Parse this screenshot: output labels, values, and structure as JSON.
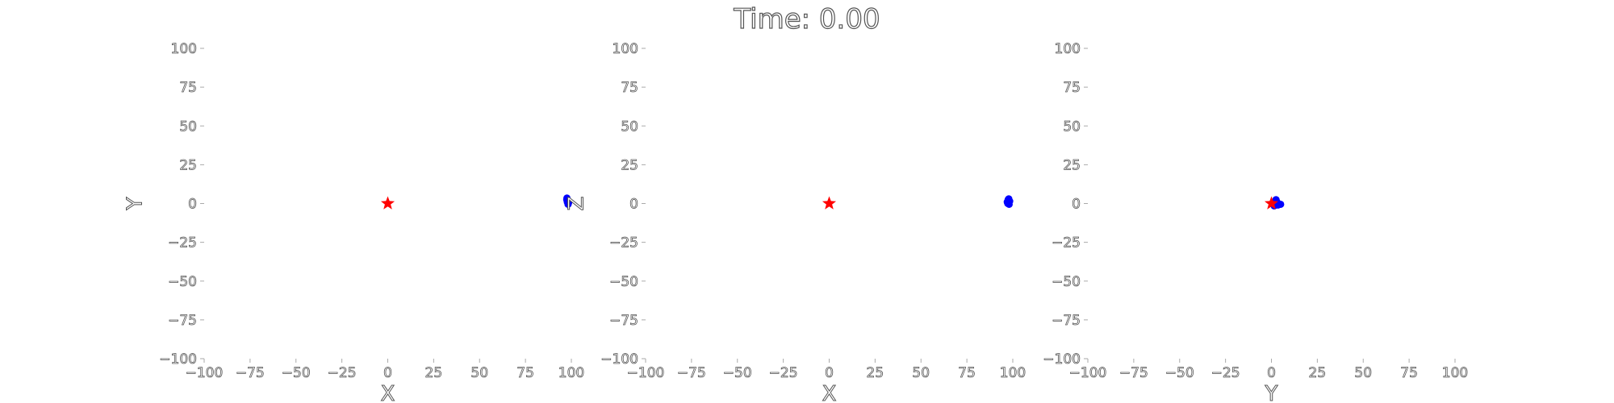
{
  "title": "Time: 0.00",
  "colors": {
    "star": "#ff0000",
    "bodies": "#0000ff",
    "text_outline": "#555555"
  },
  "chart_data": [
    {
      "type": "scatter",
      "xlabel": "X",
      "ylabel": "Y",
      "xlim": [
        -100,
        100
      ],
      "ylim": [
        -100,
        100
      ],
      "xticks": [
        -100,
        -75,
        -50,
        -25,
        0,
        25,
        50,
        75,
        100
      ],
      "yticks": [
        -100,
        -75,
        -50,
        -25,
        0,
        25,
        50,
        75,
        100
      ],
      "grid": false,
      "series": [
        {
          "marker": "star",
          "color": "#ff0000",
          "points": [
            [
              0,
              0
            ]
          ]
        },
        {
          "marker": "circle",
          "color": "#0000ff",
          "points": [
            [
              97.5,
              2.5
            ],
            [
              97.8,
              1.0
            ],
            [
              98.2,
              -0.5
            ],
            [
              97.6,
              3.5
            ],
            [
              98.5,
              0.5
            ],
            [
              98.0,
              2.0
            ]
          ]
        }
      ]
    },
    {
      "type": "scatter",
      "xlabel": "X",
      "ylabel": "Z",
      "xlim": [
        -100,
        100
      ],
      "ylim": [
        -100,
        100
      ],
      "xticks": [
        -100,
        -75,
        -50,
        -25,
        0,
        25,
        50,
        75,
        100
      ],
      "yticks": [
        -100,
        -75,
        -50,
        -25,
        0,
        25,
        50,
        75,
        100
      ],
      "grid": false,
      "series": [
        {
          "marker": "star",
          "color": "#ff0000",
          "points": [
            [
              0,
              0
            ]
          ]
        },
        {
          "marker": "circle",
          "color": "#0000ff",
          "points": [
            [
              97.0,
              1.0
            ],
            [
              97.5,
              2.5
            ],
            [
              98.0,
              -0.5
            ],
            [
              97.3,
              0.0
            ],
            [
              98.3,
              1.5
            ],
            [
              97.8,
              3.0
            ]
          ]
        }
      ]
    },
    {
      "type": "scatter",
      "xlabel": "Y",
      "ylabel": "",
      "xlim": [
        -100,
        100
      ],
      "ylim": [
        -100,
        100
      ],
      "xticks": [
        -100,
        -75,
        -50,
        -25,
        0,
        25,
        50,
        75,
        100
      ],
      "yticks": [
        -100,
        -75,
        -50,
        -25,
        0,
        25,
        50,
        75,
        100
      ],
      "grid": false,
      "series": [
        {
          "marker": "circle",
          "color": "#0000ff",
          "points": [
            [
              2.5,
              2.5
            ],
            [
              3.0,
              1.0
            ],
            [
              1.5,
              -1.5
            ],
            [
              5.0,
              -0.5
            ],
            [
              2.0,
              0.5
            ],
            [
              3.5,
              -1.0
            ]
          ]
        },
        {
          "marker": "star",
          "color": "#ff0000",
          "points": [
            [
              0,
              0
            ]
          ]
        }
      ]
    }
  ]
}
